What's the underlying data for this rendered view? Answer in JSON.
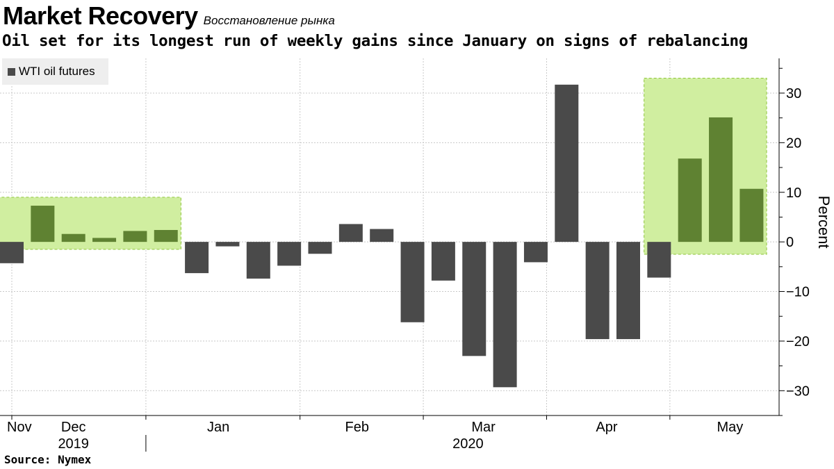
{
  "header": {
    "title": "Market Recovery",
    "title_translation": "Восстановление рынка",
    "subtitle": "Oil set for its longest run of weekly gains since January on signs of rebalancing"
  },
  "footer": {
    "source": "Source: Nymex"
  },
  "colors": {
    "bar": "#4a4a4a",
    "highlight_bar": "#5f8232",
    "highlight_fill": "#d0eea0",
    "highlight_stroke": "#8fc63c",
    "grid": "#c8c8c8"
  },
  "chart_data": {
    "type": "bar",
    "legend": {
      "entries": [
        "WTI oil futures"
      ],
      "placement": "top-left"
    },
    "series": [
      {
        "name": "WTI oil futures",
        "values": [
          -4.3,
          7.3,
          1.6,
          0.8,
          2.2,
          2.4,
          -6.3,
          -0.9,
          -7.4,
          -4.8,
          -2.4,
          3.6,
          2.6,
          -16.2,
          -7.8,
          -23.0,
          -29.3,
          -4.1,
          31.7,
          -19.6,
          -19.6,
          -7.2,
          16.8,
          25.1,
          10.7
        ],
        "highlighted": [
          false,
          true,
          true,
          true,
          true,
          true,
          false,
          false,
          false,
          false,
          false,
          false,
          false,
          false,
          false,
          false,
          false,
          false,
          false,
          false,
          false,
          false,
          true,
          true,
          true
        ]
      }
    ],
    "highlight_regions": [
      {
        "from_index": 0,
        "to_index": 5,
        "ymin": -1.5,
        "ymax": 9
      },
      {
        "from_index": 21,
        "to_index": 24,
        "ymin": -2.5,
        "ymax": 33
      }
    ],
    "ylabel": "Percent",
    "ylim": [
      -35,
      37
    ],
    "yticks": [
      -30,
      -20,
      -10,
      0,
      10,
      20,
      30
    ],
    "month_labels": [
      {
        "label": "Nov",
        "index": 0
      },
      {
        "label": "Dec",
        "index": 2
      },
      {
        "label": "Jan",
        "index": 6.7
      },
      {
        "label": "Feb",
        "index": 11.2
      },
      {
        "label": "Mar",
        "index": 15.3
      },
      {
        "label": "Apr",
        "index": 19.3
      },
      {
        "label": "May",
        "index": 23.3
      }
    ],
    "month_ticks": [
      0,
      4.35,
      9.35,
      13.35,
      17.35,
      21.35
    ],
    "year_labels": [
      {
        "label": "2019",
        "index": 2
      },
      {
        "label": "2020",
        "index": 14.8
      }
    ],
    "year_divider_index": 4.35,
    "grid": true
  }
}
